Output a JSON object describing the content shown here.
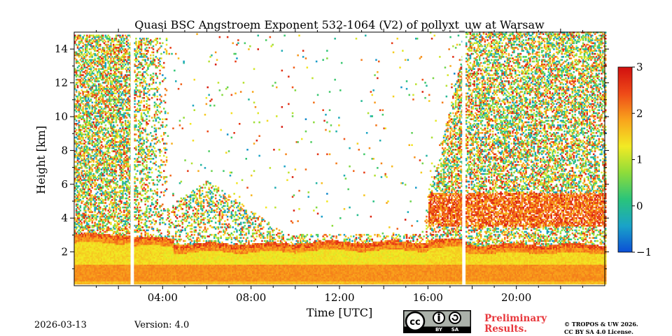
{
  "chart_data": {
    "type": "heatmap",
    "title": "Quasi BSC Angstroem Exponent 532-1064 (V2) of pollyxt_uw at Warsaw",
    "xlabel": "Time [UTC]",
    "ylabel": "Height [km]",
    "xlim_hours": [
      0,
      24
    ],
    "ylim_km": [
      0,
      15
    ],
    "x_ticks": [
      {
        "value": 4,
        "label": "04:00"
      },
      {
        "value": 8,
        "label": "08:00"
      },
      {
        "value": 12,
        "label": "12:00"
      },
      {
        "value": 16,
        "label": "16:00"
      },
      {
        "value": 20,
        "label": "20:00"
      }
    ],
    "y_ticks": [
      {
        "value": 2,
        "label": "2"
      },
      {
        "value": 4,
        "label": "4"
      },
      {
        "value": 6,
        "label": "6"
      },
      {
        "value": 8,
        "label": "8"
      },
      {
        "value": 10,
        "label": "10"
      },
      {
        "value": 12,
        "label": "12"
      },
      {
        "value": 14,
        "label": "14"
      }
    ],
    "colorbar": {
      "min": -1,
      "max": 3,
      "ticks": [
        {
          "value": 3,
          "label": "3"
        },
        {
          "value": 2,
          "label": "2"
        },
        {
          "value": 1,
          "label": "1"
        },
        {
          "value": 0,
          "label": "0"
        },
        {
          "value": -1,
          "label": "−1"
        }
      ],
      "colors": [
        "#0b4fd6",
        "#1aa3c8",
        "#2ac47a",
        "#8edc3a",
        "#f2ea24",
        "#f9a41c",
        "#ee4a18",
        "#d10f0f"
      ]
    },
    "data_gaps_hours": [
      [
        2.55,
        2.7
      ],
      [
        17.55,
        17.7
      ]
    ],
    "layers": [
      {
        "name": "boundary-layer",
        "from_hours": 0,
        "to_hours": 24,
        "top_km": "2.3-3.2",
        "typical_value": 1.5
      },
      {
        "name": "aerosol-layer-evening",
        "from_hours": 16,
        "to_hours": 24,
        "bottom_km": 3.5,
        "top_km": 5.5,
        "typical_value": 2.0
      }
    ]
  },
  "footer": {
    "date": "2026-03-13",
    "version": "Version: 4.0",
    "preliminary_line1": "Preliminary",
    "preliminary_line2": "Results.",
    "copyright_line1": "© TROPOS & UW 2026.",
    "copyright_line2": "CC BY SA 4.0 License.",
    "license_by": "BY",
    "license_sa": "SA"
  }
}
